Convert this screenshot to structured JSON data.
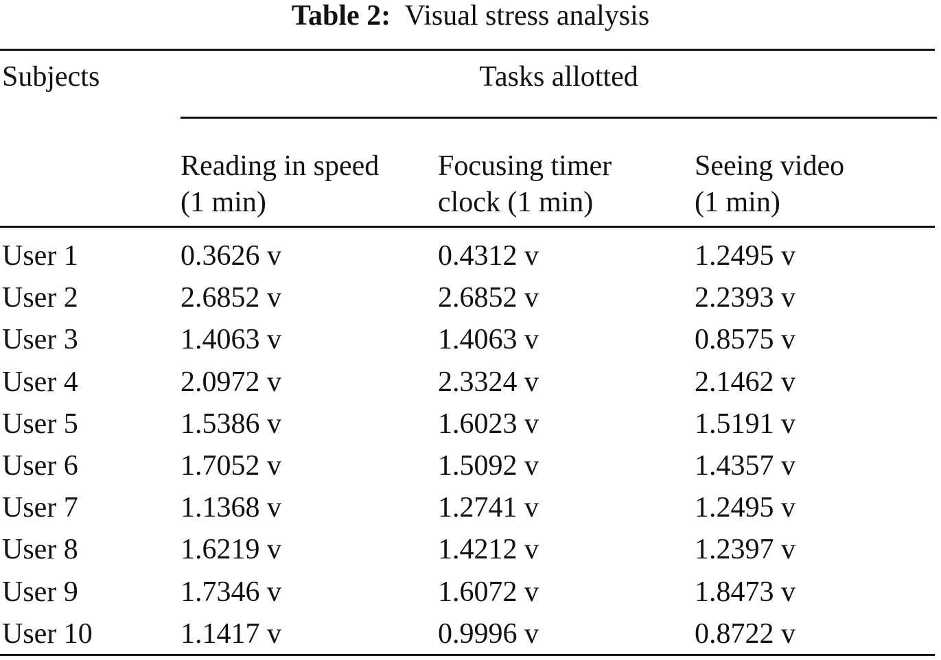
{
  "caption": {
    "label": "Table 2:",
    "text": "Visual stress analysis"
  },
  "table": {
    "subjects_header": "Subjects",
    "group_header": "Tasks allotted",
    "columns": [
      [
        "Reading in speed",
        "(1 min)"
      ],
      [
        "Focusing timer",
        "clock (1 min)"
      ],
      [
        "Seeing video",
        "(1 min)"
      ]
    ],
    "rows": [
      [
        "User 1",
        "0.3626 v",
        "0.4312 v",
        "1.2495 v"
      ],
      [
        "User 2",
        "2.6852 v",
        "2.6852 v",
        "2.2393 v"
      ],
      [
        "User 3",
        "1.4063 v",
        "1.4063 v",
        "0.8575 v"
      ],
      [
        "User 4",
        "2.0972 v",
        "2.3324 v",
        "2.1462 v"
      ],
      [
        "User 5",
        "1.5386 v",
        "1.6023 v",
        "1.5191 v"
      ],
      [
        "User 6",
        "1.7052 v",
        "1.5092 v",
        "1.4357 v"
      ],
      [
        "User 7",
        "1.1368 v",
        "1.2741 v",
        "1.2495 v"
      ],
      [
        "User 8",
        "1.6219 v",
        "1.4212 v",
        "1.2397 v"
      ],
      [
        "User 9",
        "1.7346 v",
        "1.6072 v",
        "1.8473 v"
      ],
      [
        "User 10",
        "1.1417 v",
        "0.9996 v",
        "0.8722 v"
      ]
    ]
  }
}
